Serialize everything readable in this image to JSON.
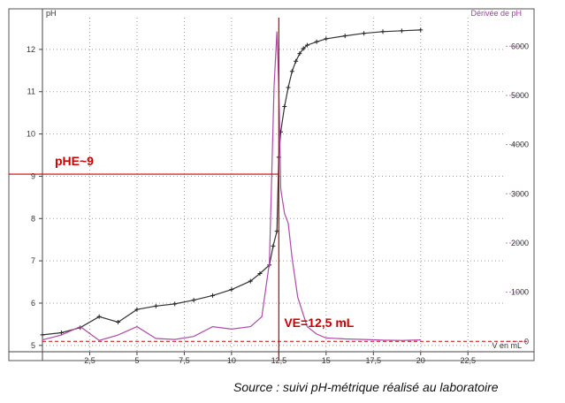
{
  "chart_data": {
    "type": "line",
    "title": "",
    "xlabel": "V en mL",
    "ylabel_left": "pH",
    "ylabel_right": "Dérivée de pH",
    "xlim": [
      0,
      24.5
    ],
    "ylim_left": [
      4.85,
      12.75
    ],
    "ylim_right": [
      -210,
      6580
    ],
    "x_ticks": [
      "2,5",
      "5",
      "7,5",
      "10",
      "12,5",
      "15",
      "17,5",
      "20",
      "22,5"
    ],
    "x_tick_values": [
      2.5,
      5,
      7.5,
      10,
      12.5,
      15,
      17.5,
      20,
      22.5
    ],
    "y_ticks_left": [
      "5",
      "6",
      "7",
      "8",
      "9",
      "10",
      "11",
      "12"
    ],
    "y_ticks_right": [
      "0",
      "1000",
      "2000",
      "3000",
      "4000",
      "5000",
      "6000"
    ],
    "grid": true,
    "series": [
      {
        "name": "pH",
        "color": "#333333",
        "axis": "left",
        "x": [
          0,
          1,
          2,
          3,
          4,
          5,
          6,
          7,
          8,
          9,
          10,
          11,
          11.5,
          12,
          12.2,
          12.4,
          12.5,
          12.6,
          12.8,
          13,
          13.2,
          13.4,
          13.6,
          13.8,
          14,
          14.5,
          15,
          16,
          17,
          18,
          19,
          20
        ],
        "y": [
          5.25,
          5.3,
          5.42,
          5.68,
          5.55,
          5.85,
          5.93,
          5.98,
          6.07,
          6.18,
          6.32,
          6.52,
          6.7,
          6.9,
          7.35,
          7.7,
          9.45,
          10.05,
          10.65,
          11.1,
          11.48,
          11.72,
          11.9,
          12.02,
          12.1,
          12.18,
          12.25,
          12.32,
          12.38,
          12.42,
          12.44,
          12.46
        ]
      },
      {
        "name": "Dérivée de pH",
        "color": "#b04aaa",
        "axis": "right",
        "x": [
          0,
          1,
          2,
          3,
          4,
          5,
          6,
          7,
          8,
          9,
          10,
          11,
          11.6,
          12,
          12.25,
          12.4,
          12.5,
          12.6,
          12.8,
          13,
          13.2,
          13.5,
          14,
          14.5,
          15,
          16,
          17,
          18,
          19,
          20
        ],
        "y": [
          30,
          130,
          300,
          20,
          130,
          300,
          60,
          40,
          100,
          300,
          250,
          300,
          500,
          1600,
          5200,
          6300,
          5200,
          3100,
          2600,
          2400,
          1700,
          900,
          300,
          150,
          70,
          50,
          40,
          25,
          20,
          30
        ]
      }
    ],
    "reference_lines": [
      {
        "label": "pHE~9",
        "axis": "left",
        "orientation": "horizontal",
        "value": 9.05,
        "color": "#cc0000"
      },
      {
        "label": "VE=12,5 mL",
        "orientation": "vertical",
        "value": 12.5,
        "color": "#cc0000"
      }
    ],
    "baseline": {
      "axis": "right",
      "value": 0,
      "color": "#cc0000",
      "style": "dashed"
    }
  },
  "caption": "Source : suivi pH-métrique réalisé au laboratoire"
}
